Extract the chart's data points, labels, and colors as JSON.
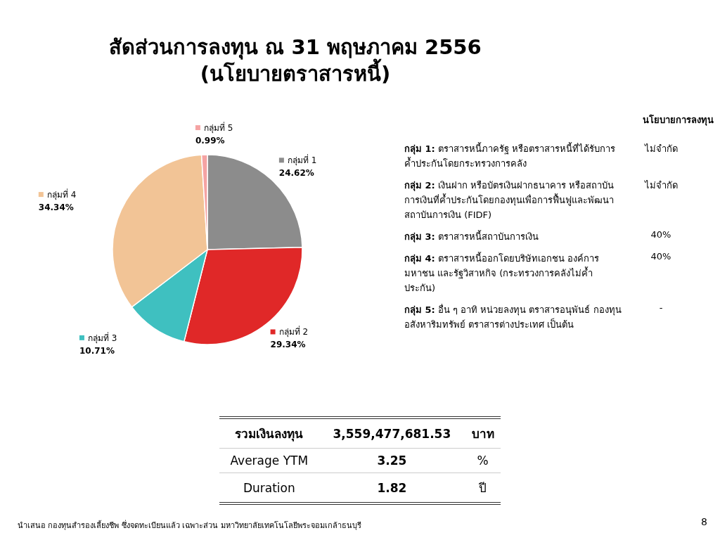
{
  "chart_data": {
    "type": "pie",
    "title": "สัดส่วนการลงทุน ณ 31 พฤษภาคม 2556",
    "subtitle": "(นโยบายตราสารหนี้)",
    "categories": [
      "กลุ่มที่ 1",
      "กลุ่มที่ 2",
      "กลุ่มที่ 3",
      "กลุ่มที่ 4",
      "กลุ่มที่ 5"
    ],
    "values": [
      24.62,
      29.34,
      10.71,
      34.34,
      0.99
    ],
    "value_labels": [
      "24.62%",
      "29.34%",
      "10.71%",
      "34.34%",
      "0.99%"
    ],
    "legend": true,
    "colors": [
      "#8c8c8c",
      "#e02828",
      "#3fc0c0",
      "#f2c496",
      "#f5a3a3"
    ],
    "annotations": [
      "นโยบายการลงทุน",
      "กลุ่ม 1: ตราสารหนี้ภาครัฐ หรือตราสารหนี้ที่ได้รับการค้ำประกันโดยกระทรวงการคลัง",
      "ไม่จำกัด",
      "กลุ่ม 2: เงินฝาก หรือบัตรเงินฝากธนาคาร หรือสถาบันการเงินที่ค้ำประกันโดยกองทุนเพื่อการฟื้นฟูและพัฒนาสถาบันการเงิน (FIDF)",
      "ไม่จำกัด",
      "กลุ่ม 3: ตราสารหนี้สถาบันการเงิน",
      "40%",
      "กลุ่ม 4: ตราสารหนี้ออกโดยบริษัทเอกชน องค์การมหาชน และรัฐวิสาหกิจ (กระทรวงการคลังไม่ค้ำประกัน)",
      "40%",
      "กลุ่ม 5: อื่น ๆ อาทิ หน่วยลงทุน ตราสารอนุพันธ์ กองทุนอสังหาริมทรัพย์ ตราสารต่างประเทศ เป็นต้น",
      "-",
      "รวมเงินลงทุน",
      "3,559,477,681.53",
      "บาท",
      "Average YTM",
      "3.25",
      "%",
      "Duration",
      "1.82",
      "ปี",
      "นำเสนอ กองทุนสำรองเลี้ยงชีพ ซึ่งจดทะเบียนแล้ว เฉพาะส่วน มหาวิทยาลัยเทคโนโลยีพระจอมเกล้าธนบุรี",
      "8"
    ]
  }
}
